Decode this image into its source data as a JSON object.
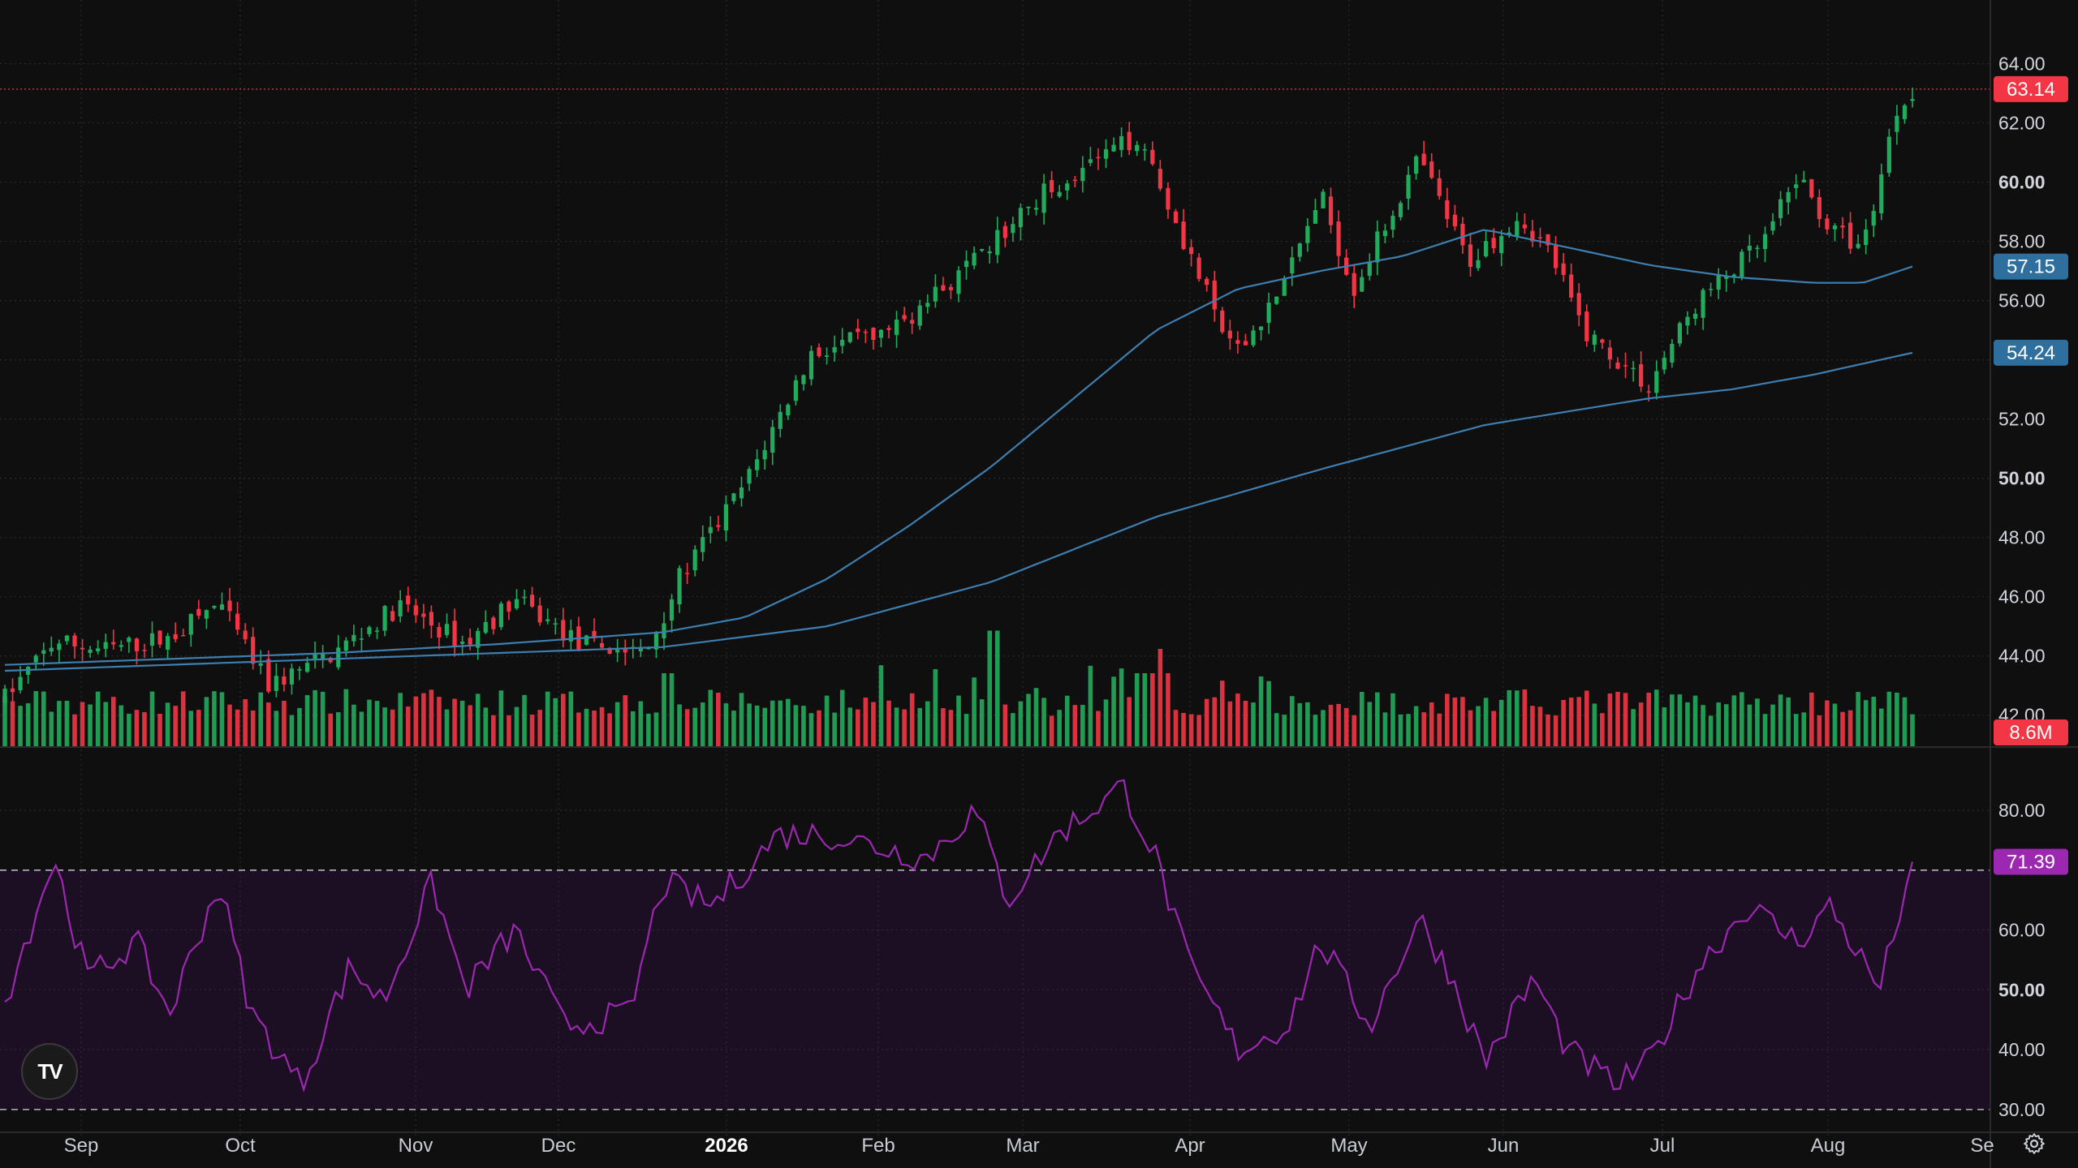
{
  "logo": {
    "text": "TV",
    "icon": "tradingview-logo-icon"
  },
  "settings": {
    "icon": "gear-icon"
  },
  "colors": {
    "background": "#0f0f0f",
    "grid": "#2a2a2a",
    "up": "#22ab5c",
    "down": "#f23645",
    "ma_fast": "#3d7fb0",
    "ma_slow": "#3d7fb0",
    "rsi_line": "#9c27b0",
    "rsi_band": "#1d0f23",
    "last_price_tag": "#f23645",
    "ma_fast_tag": "#2f6f9e",
    "ma_slow_tag": "#2f6f9e",
    "rsi_tag": "#9c27b0",
    "volume_tag": "#f23645"
  },
  "price_axis": {
    "ticks": [
      "64.00",
      "62.00",
      "60.00",
      "58.00",
      "56.00",
      "52.00",
      "50.00",
      "48.00",
      "46.00",
      "44.00",
      "42.00"
    ],
    "bold_ticks": [
      "60.00",
      "50.00"
    ]
  },
  "rsi_axis": {
    "ticks": [
      "80.00",
      "60.00",
      "50.00",
      "40.00",
      "30.00"
    ],
    "bold_ticks": [
      "50.00"
    ]
  },
  "tags": {
    "last_price": "63.14",
    "ma_fast": "57.15",
    "ma_slow": "54.24",
    "volume": "8.6M",
    "rsi": "71.39"
  },
  "time_axis": {
    "labels": [
      "Sep",
      "Oct",
      "Nov",
      "Dec",
      "2026",
      "Feb",
      "Mar",
      "Apr",
      "May",
      "Jun",
      "Jul",
      "Aug",
      "Se"
    ],
    "bold_labels": [
      "2026"
    ]
  },
  "chart_data": {
    "type": "candlestick",
    "price_range": [
      41.5,
      65.0
    ],
    "rsi_range": [
      27,
      88
    ],
    "rsi_levels": [
      70,
      30
    ],
    "anchors": [
      {
        "m": 0,
        "p": 42.6
      },
      {
        "m": 0.3,
        "p": 44.5
      },
      {
        "m": 0.6,
        "p": 44.2
      },
      {
        "m": 1,
        "p": 44.6
      },
      {
        "m": 1.3,
        "p": 45.8
      },
      {
        "m": 1.6,
        "p": 43.0
      },
      {
        "m": 2,
        "p": 44.1
      },
      {
        "m": 2.4,
        "p": 45.7
      },
      {
        "m": 2.8,
        "p": 44.4
      },
      {
        "m": 3.1,
        "p": 45.9
      },
      {
        "m": 3.5,
        "p": 44.4
      },
      {
        "m": 3.9,
        "p": 44.1
      },
      {
        "m": 4.1,
        "p": 46.6
      },
      {
        "m": 4.5,
        "p": 49.8
      },
      {
        "m": 4.9,
        "p": 54.2
      },
      {
        "m": 5.4,
        "p": 55.0
      },
      {
        "m": 5.9,
        "p": 57.3
      },
      {
        "m": 6.3,
        "p": 59.6
      },
      {
        "m": 6.9,
        "p": 61.6
      },
      {
        "m": 7.4,
        "p": 55.0
      },
      {
        "m": 7.5,
        "p": 54.2
      },
      {
        "m": 7.8,
        "p": 56.8
      },
      {
        "m": 8,
        "p": 59.6
      },
      {
        "m": 8.2,
        "p": 56.4
      },
      {
        "m": 8.6,
        "p": 60.8
      },
      {
        "m": 8.9,
        "p": 57.3
      },
      {
        "m": 9.2,
        "p": 58.9
      },
      {
        "m": 9.4,
        "p": 57.6
      },
      {
        "m": 9.6,
        "p": 55.0
      },
      {
        "m": 10,
        "p": 53.1
      },
      {
        "m": 10.1,
        "p": 54.2
      },
      {
        "m": 10.3,
        "p": 56.0
      },
      {
        "m": 10.7,
        "p": 58.0
      },
      {
        "m": 10.9,
        "p": 60.2
      },
      {
        "m": 11.1,
        "p": 58.4
      },
      {
        "m": 11.3,
        "p": 57.8
      },
      {
        "m": 11.5,
        "p": 62.4
      },
      {
        "m": 11.6,
        "p": 63.14
      }
    ],
    "rsi_anchors": [
      {
        "m": 0,
        "r": 48
      },
      {
        "m": 0.3,
        "r": 72
      },
      {
        "m": 0.5,
        "r": 52
      },
      {
        "m": 0.8,
        "r": 58
      },
      {
        "m": 1.0,
        "r": 46
      },
      {
        "m": 1.3,
        "r": 68
      },
      {
        "m": 1.5,
        "r": 46
      },
      {
        "m": 1.8,
        "r": 34
      },
      {
        "m": 2.1,
        "r": 54
      },
      {
        "m": 2.3,
        "r": 48
      },
      {
        "m": 2.6,
        "r": 68
      },
      {
        "m": 2.8,
        "r": 50
      },
      {
        "m": 3.1,
        "r": 60
      },
      {
        "m": 3.4,
        "r": 44
      },
      {
        "m": 3.8,
        "r": 46
      },
      {
        "m": 4.0,
        "r": 68
      },
      {
        "m": 4.3,
        "r": 64
      },
      {
        "m": 4.7,
        "r": 76
      },
      {
        "m": 5.0,
        "r": 76
      },
      {
        "m": 5.3,
        "r": 74
      },
      {
        "m": 5.6,
        "r": 72
      },
      {
        "m": 5.9,
        "r": 80
      },
      {
        "m": 6.1,
        "r": 65
      },
      {
        "m": 6.4,
        "r": 76
      },
      {
        "m": 6.8,
        "r": 84
      },
      {
        "m": 7.0,
        "r": 72
      },
      {
        "m": 7.2,
        "r": 54
      },
      {
        "m": 7.5,
        "r": 40
      },
      {
        "m": 7.8,
        "r": 44
      },
      {
        "m": 8.0,
        "r": 58
      },
      {
        "m": 8.3,
        "r": 44
      },
      {
        "m": 8.6,
        "r": 62
      },
      {
        "m": 8.8,
        "r": 52
      },
      {
        "m": 9.0,
        "r": 38
      },
      {
        "m": 9.3,
        "r": 52
      },
      {
        "m": 9.5,
        "r": 40
      },
      {
        "m": 9.8,
        "r": 34
      },
      {
        "m": 10.0,
        "r": 38
      },
      {
        "m": 10.3,
        "r": 54
      },
      {
        "m": 10.6,
        "r": 64
      },
      {
        "m": 10.9,
        "r": 58
      },
      {
        "m": 11.1,
        "r": 64
      },
      {
        "m": 11.4,
        "r": 50
      },
      {
        "m": 11.6,
        "r": 71.39
      }
    ],
    "ma_fast_anchors": [
      {
        "m": 0,
        "p": 43.7
      },
      {
        "m": 1,
        "p": 43.9
      },
      {
        "m": 2,
        "p": 44.1
      },
      {
        "m": 3,
        "p": 44.4
      },
      {
        "m": 4,
        "p": 44.8
      },
      {
        "m": 4.5,
        "p": 45.3
      },
      {
        "m": 5,
        "p": 46.6
      },
      {
        "m": 5.5,
        "p": 48.4
      },
      {
        "m": 6,
        "p": 50.4
      },
      {
        "m": 6.5,
        "p": 52.7
      },
      {
        "m": 7,
        "p": 55.0
      },
      {
        "m": 7.5,
        "p": 56.4
      },
      {
        "m": 8,
        "p": 57.0
      },
      {
        "m": 8.5,
        "p": 57.5
      },
      {
        "m": 9,
        "p": 58.4
      },
      {
        "m": 9.5,
        "p": 57.8
      },
      {
        "m": 10,
        "p": 57.2
      },
      {
        "m": 10.5,
        "p": 56.8
      },
      {
        "m": 11,
        "p": 56.6
      },
      {
        "m": 11.3,
        "p": 56.6
      },
      {
        "m": 11.6,
        "p": 57.15
      }
    ],
    "ma_slow_anchors": [
      {
        "m": 0,
        "p": 43.5
      },
      {
        "m": 1,
        "p": 43.7
      },
      {
        "m": 2,
        "p": 43.9
      },
      {
        "m": 3,
        "p": 44.1
      },
      {
        "m": 4,
        "p": 44.3
      },
      {
        "m": 5,
        "p": 45.0
      },
      {
        "m": 6,
        "p": 46.5
      },
      {
        "m": 7,
        "p": 48.7
      },
      {
        "m": 8,
        "p": 50.3
      },
      {
        "m": 9,
        "p": 51.8
      },
      {
        "m": 10,
        "p": 52.7
      },
      {
        "m": 10.5,
        "p": 53.0
      },
      {
        "m": 11,
        "p": 53.5
      },
      {
        "m": 11.6,
        "p": 54.24
      }
    ]
  }
}
